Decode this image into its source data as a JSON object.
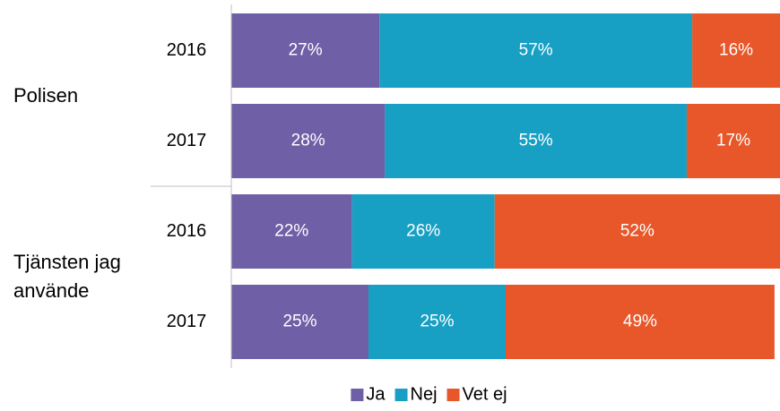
{
  "chart_data": {
    "type": "stacked-barh",
    "groups": [
      {
        "label": "Polisen",
        "categories": [
          "2016",
          "2017"
        ]
      },
      {
        "label": "Tjänsten jag använde",
        "categories": [
          "2016",
          "2017"
        ]
      }
    ],
    "series": [
      {
        "name": "Ja",
        "color": "#6f5fa6",
        "values": [
          27,
          28,
          22,
          25
        ],
        "value_labels": [
          "27%",
          "28%",
          "22%",
          "25%"
        ]
      },
      {
        "name": "Nej",
        "color": "#17a0c4",
        "values": [
          57,
          55,
          26,
          25
        ],
        "value_labels": [
          "57%",
          "55%",
          "26%",
          "25%"
        ]
      },
      {
        "name": "Vet ej",
        "color": "#e8572a",
        "values": [
          16,
          17,
          52,
          49
        ],
        "value_labels": [
          "16%",
          "17%",
          "52%",
          "49%"
        ]
      }
    ],
    "xlim": [
      0,
      100
    ],
    "legend": "bottom"
  }
}
